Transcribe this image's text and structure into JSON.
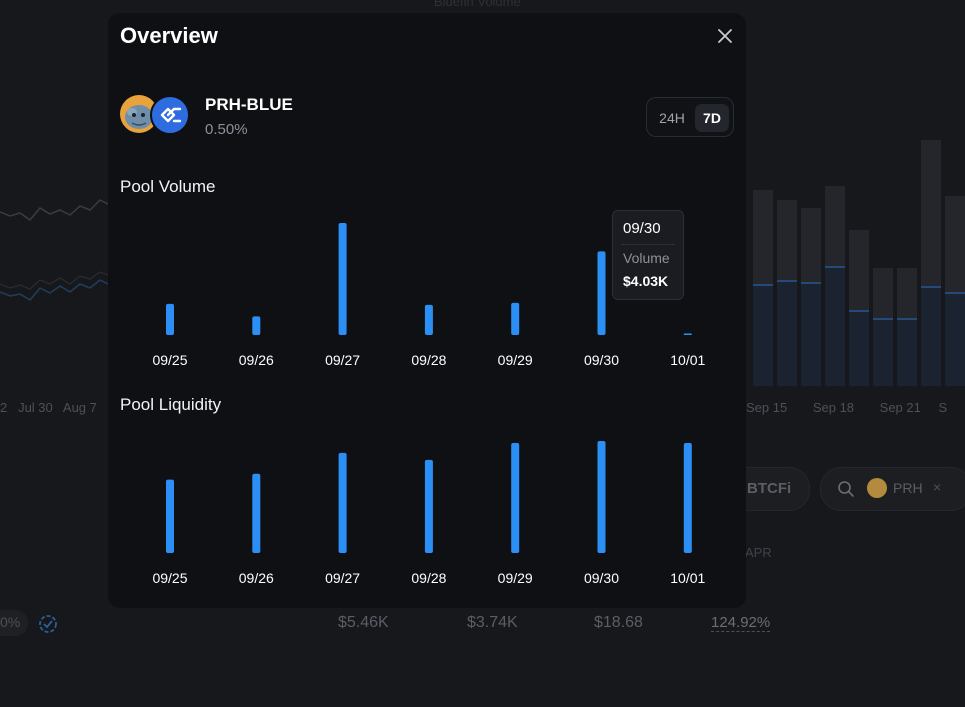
{
  "background": {
    "chart_title": "Bluefin Volume",
    "left_axis_labels": [
      "2",
      "Jul 30",
      "Aug 7"
    ],
    "right_axis_labels": [
      "Sep 15",
      "Sep 18",
      "Sep 21",
      "S"
    ],
    "filter_chip": "BTCFi",
    "search_token": "PRH",
    "apr_header": "APR",
    "row": {
      "fee_partial": "0%",
      "tvl": "$5.46K",
      "volume": "$3.74K",
      "fees": "$18.68",
      "apr": "124.92%"
    }
  },
  "modal": {
    "title": "Overview",
    "pair": "PRH-BLUE",
    "fee_tier": "0.50%",
    "range_options": [
      "24H",
      "7D"
    ],
    "selected_range": "7D",
    "volume_title": "Pool Volume",
    "liquidity_title": "Pool Liquidity",
    "tooltip": {
      "date": "09/30",
      "label": "Volume",
      "value": "$4.03K"
    }
  },
  "chart_data": [
    {
      "type": "bar",
      "title": "Pool Volume",
      "categories": [
        "09/25",
        "09/26",
        "09/27",
        "09/28",
        "09/29",
        "09/30",
        "10/01"
      ],
      "values": [
        1.5,
        0.9,
        5.4,
        1.45,
        1.55,
        4.03,
        0.05
      ],
      "unit": "$K",
      "ylim": [
        0,
        5.4
      ],
      "grid": false,
      "color": "#2b8ff6"
    },
    {
      "type": "bar",
      "title": "Pool Liquidity",
      "categories": [
        "09/25",
        "09/26",
        "09/27",
        "09/28",
        "09/29",
        "09/30",
        "10/01"
      ],
      "values": [
        74,
        80,
        101,
        94,
        111,
        113,
        111
      ],
      "unit": "relative",
      "ylim": [
        0,
        113
      ],
      "grid": false,
      "color": "#2b8ff6"
    }
  ]
}
